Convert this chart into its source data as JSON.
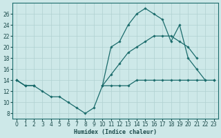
{
  "xlabel": "Humidex (Indice chaleur)",
  "bg_color": "#cde8e8",
  "line_color": "#1a6b6b",
  "grid_color": "#b0d0d0",
  "xlim": [
    -0.5,
    23.5
  ],
  "ylim": [
    7,
    28
  ],
  "yticks": [
    8,
    10,
    12,
    14,
    16,
    18,
    20,
    22,
    24,
    26
  ],
  "xticks": [
    0,
    1,
    2,
    3,
    4,
    5,
    6,
    7,
    8,
    9,
    10,
    11,
    12,
    13,
    14,
    15,
    16,
    17,
    18,
    19,
    20,
    21,
    22,
    23
  ],
  "line1_x": [
    0,
    1,
    2,
    3,
    4,
    5,
    6,
    7,
    8,
    9,
    10,
    11,
    12,
    13,
    14,
    15,
    16,
    17,
    18,
    19,
    20,
    21,
    22,
    23
  ],
  "line1_y": [
    14,
    13,
    13,
    12,
    11,
    11,
    10,
    9,
    8,
    9,
    13,
    20,
    21,
    24,
    26,
    27,
    26,
    25,
    21,
    24,
    18,
    16,
    14,
    null
  ],
  "line2_x": [
    0,
    1,
    2,
    3,
    4,
    5,
    6,
    7,
    8,
    9,
    10,
    11,
    12,
    13,
    14,
    15,
    16,
    17,
    18,
    19,
    20,
    21,
    22,
    23
  ],
  "line2_y": [
    14,
    13,
    13,
    null,
    null,
    null,
    null,
    null,
    null,
    null,
    13,
    15,
    17,
    19,
    20,
    21,
    22,
    22,
    22,
    21,
    20,
    18,
    null,
    14
  ],
  "line3_x": [
    0,
    1,
    2,
    3,
    4,
    5,
    6,
    7,
    8,
    9,
    10,
    11,
    12,
    13,
    14,
    15,
    16,
    17,
    18,
    19,
    20,
    21,
    22,
    23
  ],
  "line3_y": [
    14,
    13,
    13,
    null,
    null,
    null,
    null,
    null,
    null,
    null,
    13,
    13,
    13,
    13,
    14,
    14,
    14,
    14,
    14,
    14,
    14,
    14,
    14,
    14
  ]
}
